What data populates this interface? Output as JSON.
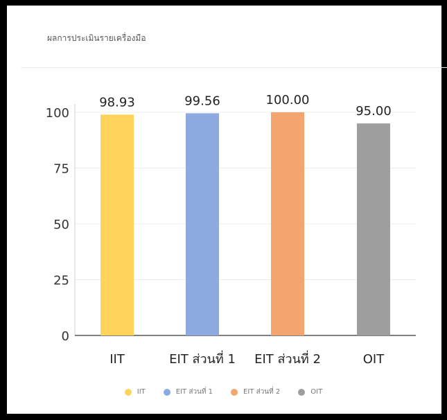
{
  "card": {
    "title": "ผลการประเมินรายเครื่องมือ"
  },
  "chart_data": {
    "type": "bar",
    "title": "",
    "xlabel": "",
    "ylabel": "",
    "categories": [
      "IIT",
      "EIT ส่วนที่ 1",
      "EIT ส่วนที่ 2",
      "OIT"
    ],
    "values": [
      98.93,
      99.56,
      100.0,
      95.0
    ],
    "value_labels": [
      "98.93",
      "99.56",
      "100.00",
      "95.00"
    ],
    "colors": [
      "#FFD25A",
      "#8CA9E0",
      "#F4A46E",
      "#9E9E9E"
    ],
    "ylim": [
      0,
      100
    ],
    "yticks": [
      0,
      25,
      50,
      75,
      100
    ],
    "grid": true,
    "legend_position": "bottom",
    "legend": [
      "IIT",
      "EIT ส่วนที่ 1",
      "EIT ส่วนที่ 2",
      "OIT"
    ]
  }
}
